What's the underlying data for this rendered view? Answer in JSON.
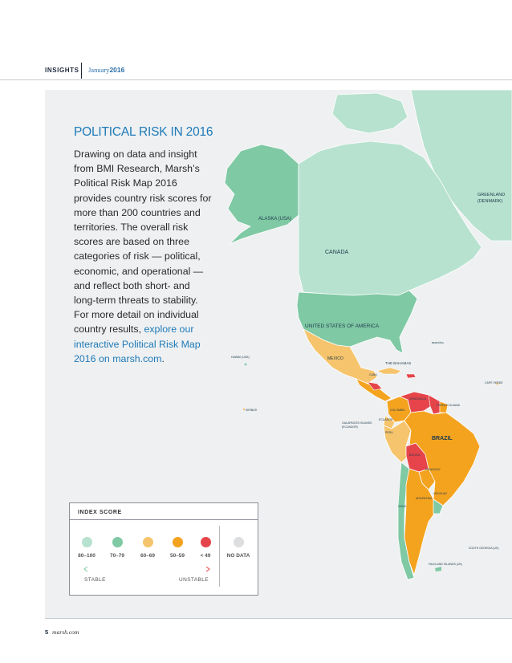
{
  "header": {
    "section": "INSIGHTS",
    "month": "January",
    "year": "2016"
  },
  "title": "POLITICAL RISK IN 2016",
  "body": {
    "text": "Drawing on data and insight from BMI Research, Marsh’s Political Risk Map 2016 provides country risk scores for more than 200 countries and territories. The overall risk scores are based on three categories of risk — political, economic, and operational — and reflect both short- and long-term threats to stability. For more detail on individual country results, ",
    "link_text": "explore our interactive Political Risk Map 2016 on marsh.com",
    "end": "."
  },
  "colors": {
    "score_80_100": "#b7e2cf",
    "score_70_79": "#7fc9a4",
    "score_60_69": "#f6c46c",
    "score_50_59": "#f4a31f",
    "score_below_49": "#e5454a",
    "no_data": "#dcdedf",
    "title_blue": "#1e7ab8"
  },
  "legend": {
    "title": "INDEX SCORE",
    "ranges": [
      "80–100",
      "70–79",
      "60–69",
      "50–59",
      "< 49"
    ],
    "no_data": "NO DATA",
    "stable": "STABLE",
    "unstable": "UNSTABLE"
  },
  "map_labels": {
    "alaska": "ALASKA (USA)",
    "canada": "CANADA",
    "greenland": "GREENLAND (DENMARK)",
    "usa": "UNITED STATES OF AMERICA",
    "mexico": "MEXICO",
    "bahamas": "THE BAHAMAS",
    "brazil": "BRAZIL",
    "hawaii": "HAWAII (USA)",
    "kiribati": "KIRIBATI",
    "galapagos": "GALAPAGOS ISLANDS (ECUADOR)",
    "colombia": "COLOMBIA",
    "venezuela": "VENEZUELA",
    "peru": "PERU",
    "bolivia": "BOLIVIA",
    "paraguay": "PARAGUAY",
    "argentina": "ARGENTINA",
    "uruguay": "URUGUAY",
    "chile": "CHILE",
    "cuba": "CUBA",
    "french_guiana": "FRENCH GUIANA",
    "ecuador": "ECUADOR",
    "falklands": "FALKLAND ISLANDS (UK)",
    "south_georgia": "SOUTH GEORGIA (UK)",
    "cape_verde": "CAPE VERDE",
    "bermuda": "BERMUDA"
  },
  "footer": {
    "page": "5",
    "site": "marsh.com"
  }
}
